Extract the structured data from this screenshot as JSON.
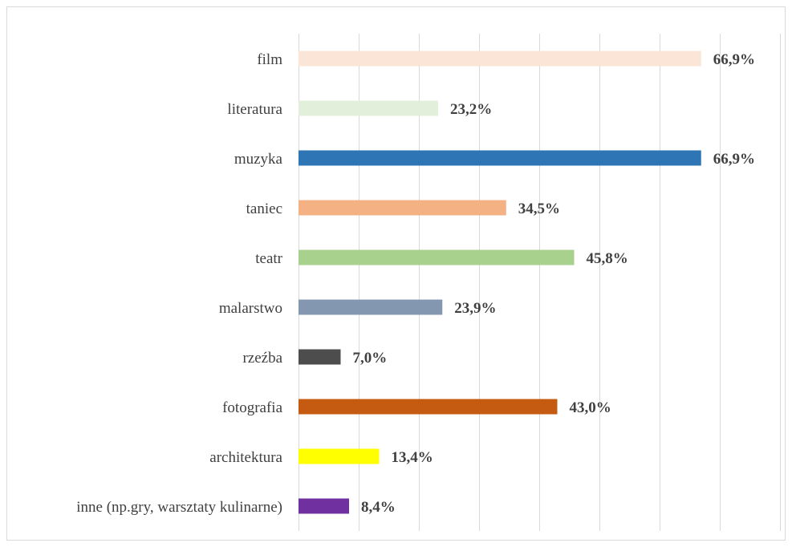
{
  "chart_data": {
    "type": "bar",
    "orientation": "horizontal",
    "categories": [
      "film",
      "literatura",
      "muzyka",
      "taniec",
      "teatr",
      "malarstwo",
      "rzeźba",
      "fotografia",
      "architektura",
      "inne (np.gry, warsztaty kulinarne)"
    ],
    "values": [
      66.9,
      23.2,
      66.9,
      34.5,
      45.8,
      23.9,
      7.0,
      43.0,
      13.4,
      8.4
    ],
    "value_labels": [
      "66,9%",
      "23,2%",
      "66,9%",
      "34,5%",
      "45,8%",
      "23,9%",
      "7,0%",
      "43,0%",
      "13,4%",
      "8,4%"
    ],
    "colors": [
      "#fbe5d6",
      "#e2efda",
      "#2e75b6",
      "#f4b183",
      "#a9d18e",
      "#8497b0",
      "#4d4d4d",
      "#c55a11",
      "#ffff00",
      "#7030a0"
    ],
    "xlim": [
      0,
      80
    ],
    "grid": true,
    "title": "",
    "xlabel": "",
    "ylabel": ""
  }
}
